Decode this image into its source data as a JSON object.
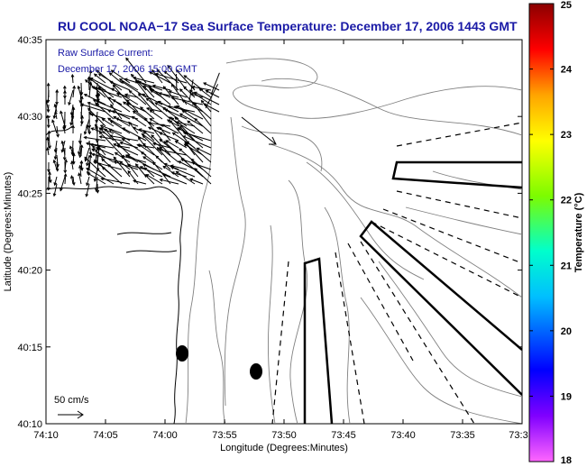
{
  "title": "RU COOL  NOAA−17  Sea Surface Temperature:  December 17, 2006 1443 GMT",
  "current_label_line1": "Raw Surface Current:",
  "current_label_line2": "December 17, 2006 15:00 GMT",
  "scale_label": "50 cm/s",
  "x_axis_label": "Longitude (Degrees:Minutes)",
  "y_axis_label": "Latitude (Degrees:Minutes)",
  "x_ticks": [
    "74:10",
    "74:05",
    "74:00",
    "73:55",
    "73:50",
    "73:45",
    "73:40",
    "73:35",
    "73:3"
  ],
  "y_ticks": [
    "40:35",
    "40:30",
    "40:25",
    "40:20",
    "40:15",
    "40:10"
  ],
  "colorbar": {
    "label": "Temperature (°C)",
    "ticks": [
      "25",
      "24",
      "23",
      "22",
      "21",
      "20",
      "19",
      "18"
    ],
    "colors": [
      "#8b0000",
      "#ff0000",
      "#ff8c00",
      "#ffff00",
      "#7cfc00",
      "#00ffff",
      "#0000ff",
      "#8000ff",
      "#ff66ff"
    ]
  },
  "colors": {
    "title": "#1a1aa6",
    "contour": "#808080",
    "land": "#000000"
  }
}
